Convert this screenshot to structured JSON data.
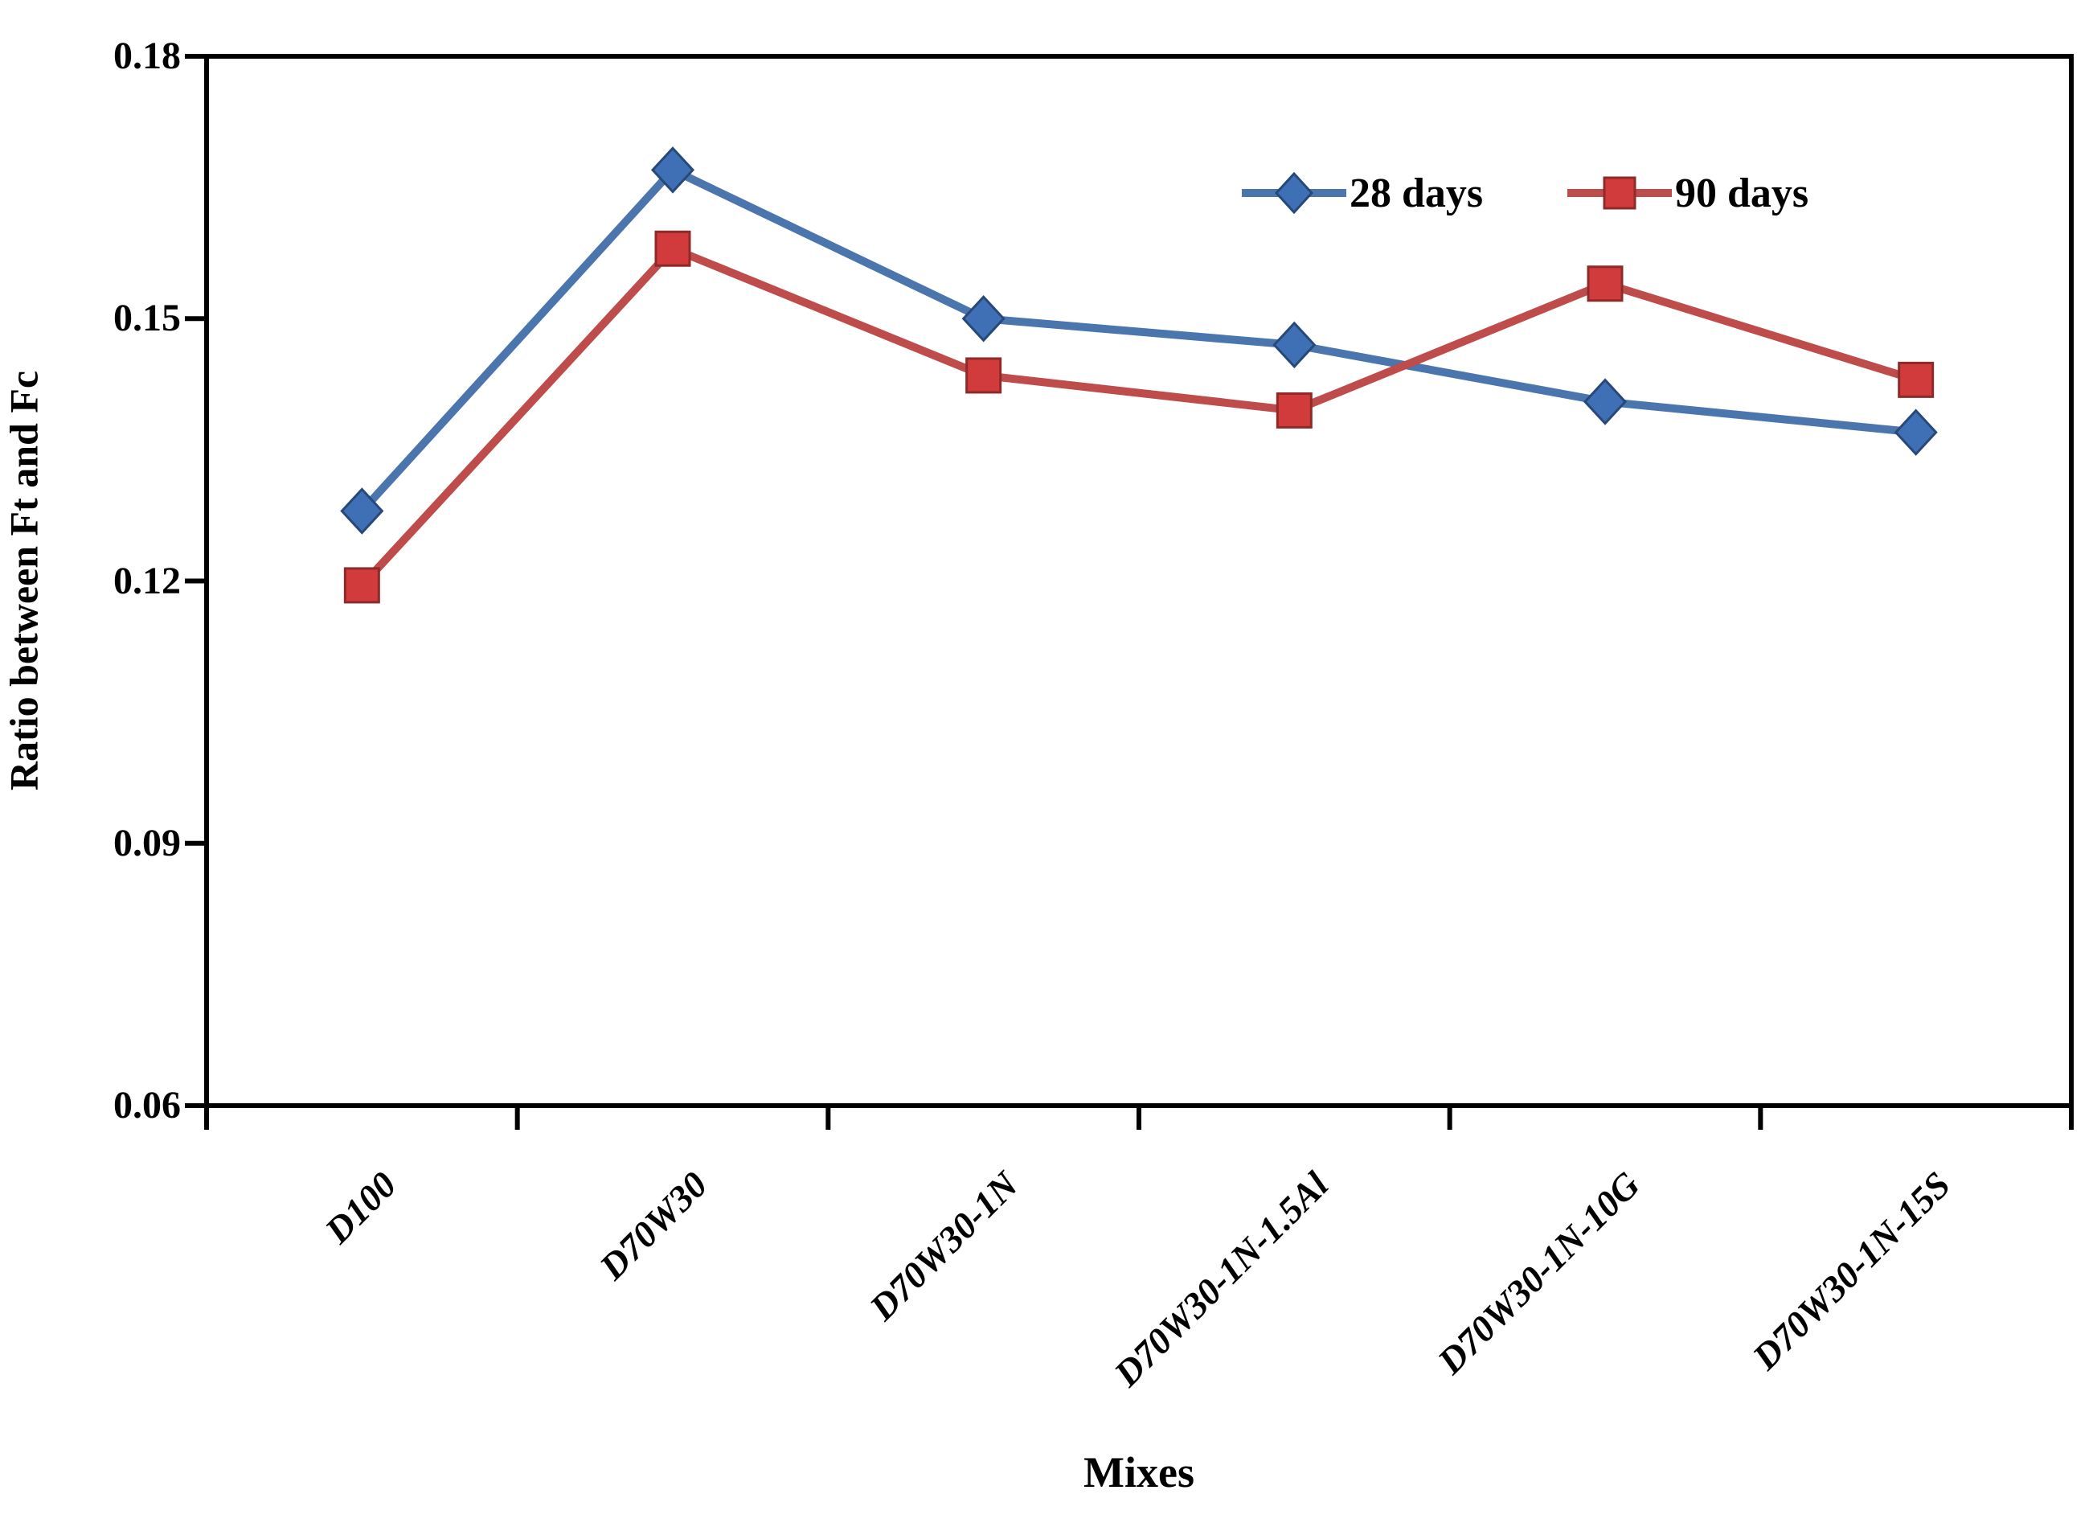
{
  "chart_data": {
    "type": "line",
    "title": "",
    "xlabel": "Mixes",
    "ylabel": "Ratio between Ft and Fc",
    "categories": [
      "D100",
      "D70W30",
      "D70W30-1N",
      "D70W30-1N-1.5Al",
      "D70W30-1N-10G",
      "D70W30-1N-15S"
    ],
    "series": [
      {
        "name": "28 days",
        "marker": "diamond",
        "color": "#4B76AD",
        "marker_fill": "#3F6FB5",
        "marker_edge": "#27497A",
        "values": [
          0.128,
          0.167,
          0.15,
          0.147,
          0.1405,
          0.137
        ]
      },
      {
        "name": "90 days",
        "marker": "square",
        "color": "#BE4C4A",
        "marker_fill": "#D13B3B",
        "marker_edge": "#8E2B29",
        "values": [
          0.1195,
          0.158,
          0.1435,
          0.1395,
          0.154,
          0.143
        ]
      }
    ],
    "ylim": [
      0.06,
      0.18
    ],
    "yticks": [
      0.18,
      0.15,
      0.12,
      0.09,
      0.06
    ],
    "ytick_labels": [
      "0.18",
      "0.15",
      "0.12",
      "0.09",
      "0.06"
    ],
    "grid": false,
    "legend_position": "top-inside-right",
    "axis_color": "#000000",
    "background_color": "#FFFFFF"
  }
}
